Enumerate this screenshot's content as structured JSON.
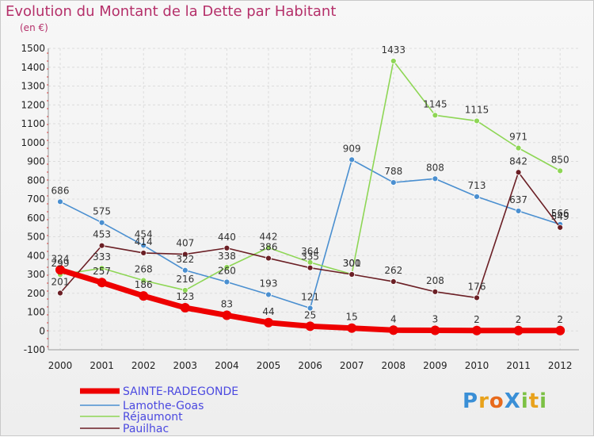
{
  "header": {
    "title": "Evolution du Montant de la Dette par Habitant",
    "unit": "(en €)"
  },
  "logo": {
    "text": "ProXiti",
    "letter_colors": [
      "#3a8fd6",
      "#e8a21c",
      "#e86a1c",
      "#3a8fd6",
      "#7cc144",
      "#e8a21c",
      "#7cc144"
    ]
  },
  "chart_data": {
    "type": "line",
    "title": "Evolution du Montant de la Dette par Habitant",
    "ylabel": "(en €)",
    "xlabel": "",
    "x": [
      "2000",
      "2001",
      "2002",
      "2003",
      "2004",
      "2005",
      "2006",
      "2007",
      "2008",
      "2009",
      "2010",
      "2011",
      "2012"
    ],
    "ylim": [
      -100,
      1500
    ],
    "yticks": [
      -100,
      0,
      100,
      200,
      300,
      400,
      500,
      600,
      700,
      800,
      900,
      1000,
      1100,
      1200,
      1300,
      1400,
      1500
    ],
    "grid": true,
    "legend_position": "bottom-left",
    "series": [
      {
        "name": "SAINTE-RADEGONDE",
        "color": "#ee0000",
        "values": [
          324,
          257,
          186,
          123,
          83,
          44,
          25,
          15,
          4,
          3,
          2,
          2,
          2
        ],
        "labels": [
          "324",
          "257",
          "186",
          "123",
          "83",
          "44",
          "25",
          "15",
          "4",
          "3",
          "2",
          "2",
          "2"
        ]
      },
      {
        "name": "Lamothe-Goas",
        "color": "#4a8fd0",
        "values": [
          686,
          575,
          454,
          322,
          260,
          193,
          121,
          909,
          788,
          808,
          713,
          637,
          566
        ],
        "labels": [
          "686",
          "575",
          "454",
          "322",
          "260",
          "193",
          "121",
          "909",
          "788",
          "808",
          "713",
          "637",
          "566"
        ]
      },
      {
        "name": "Réjaumont",
        "color": "#8ed655",
        "values": [
          299,
          333,
          268,
          216,
          338,
          442,
          364,
          301,
          1433,
          1145,
          1115,
          971,
          850
        ],
        "labels": [
          "299",
          "333",
          "268",
          "216",
          "338",
          "442",
          "364",
          "301",
          "1433",
          "1145",
          "1115",
          "971",
          "850"
        ]
      },
      {
        "name": "Pauilhac",
        "color": "#6b1f25",
        "values": [
          201,
          453,
          414,
          407,
          440,
          386,
          335,
          300,
          262,
          208,
          176,
          842,
          549
        ],
        "labels": [
          "201",
          "453",
          "414",
          "407",
          "440",
          "386",
          "335",
          "300",
          "262",
          "208",
          "176",
          "842",
          "549"
        ]
      }
    ]
  }
}
